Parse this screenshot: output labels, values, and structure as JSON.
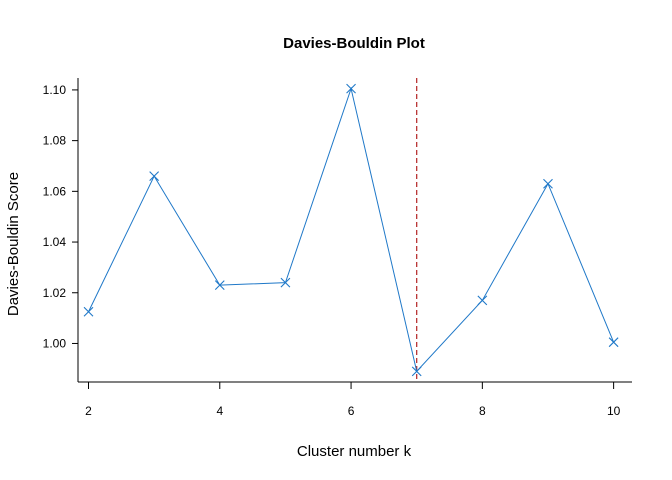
{
  "chart_data": {
    "type": "line",
    "title": "Davies-Bouldin Plot",
    "xlabel": "Cluster number k",
    "ylabel": "Davies-Bouldin Score",
    "x": [
      2,
      3,
      4,
      5,
      6,
      7,
      8,
      9,
      10
    ],
    "series": [
      {
        "values": [
          1.0125,
          1.066,
          1.023,
          1.024,
          1.1005,
          0.989,
          1.017,
          1.063,
          1.0005
        ],
        "color": "#1f78c8",
        "marker": "x"
      }
    ],
    "reference_line": {
      "axis": "x",
      "value": 7,
      "color": "#b22222",
      "style": "dashed"
    },
    "xticks": [
      2,
      4,
      6,
      8,
      10
    ],
    "yticks": [
      "1.00",
      "1.02",
      "1.04",
      "1.06",
      "1.08",
      "1.10"
    ],
    "xlim": [
      1.84,
      10.28
    ],
    "ylim": [
      0.9848,
      1.1047
    ],
    "grid": false,
    "legend": "none"
  }
}
